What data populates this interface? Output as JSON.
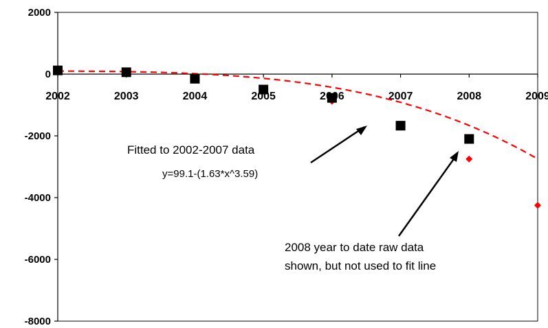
{
  "chart_data": {
    "type": "scatter",
    "title": "",
    "xlabel": "",
    "ylabel": "",
    "x_ticks": [
      "2002",
      "2003",
      "2004",
      "2005",
      "2006",
      "2007",
      "2008",
      "2009"
    ],
    "y_ticks": [
      "2000",
      "0",
      "-2000",
      "-4000",
      "-6000",
      "-8000"
    ],
    "xlim": [
      2002,
      2009
    ],
    "ylim": [
      -8000,
      2000
    ],
    "grid": false,
    "legend": "none",
    "series": [
      {
        "kind": "observed",
        "marker": "square",
        "color": "#000000",
        "x": [
          2002,
          2003,
          2004,
          2005,
          2006,
          2007,
          2008
        ],
        "y": [
          120,
          60,
          -150,
          -500,
          -770,
          -1670,
          -2100
        ]
      },
      {
        "kind": "fit",
        "marker": "diamond",
        "line_style": "dashed",
        "color": "#ff0000",
        "x": [
          2006,
          2008,
          2009
        ],
        "y": [
          -880,
          -2750,
          -4250
        ]
      }
    ],
    "fit_curve": {
      "intercept": 99.1,
      "coefficient": 1.63,
      "exponent": 3.59
    },
    "annotations": [
      {
        "text": "Fitted to 2002-2007 data",
        "arrow_to": [
          2006.6,
          -1660
        ]
      },
      {
        "text": "y=99.1-(1.63*x^3.59)"
      },
      {
        "text": "2008 year to date raw data",
        "arrow_to": [
          2007.9,
          -2450
        ]
      },
      {
        "text": "shown, but not used to fit line"
      }
    ],
    "colors": {
      "fit": "#ff0000",
      "data": "#000000"
    }
  }
}
